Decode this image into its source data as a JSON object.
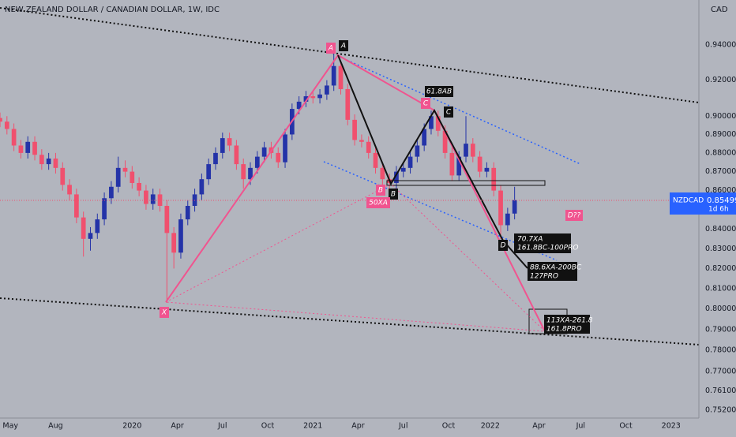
{
  "chart_data": {
    "type": "candlestick",
    "title": "NEW ZEALAND DOLLAR / CANADIAN DOLLAR, 1W, IDC",
    "currency": "CAD",
    "log_scale": true,
    "grid": false,
    "xlim": [
      0,
      201
    ],
    "xticks": [
      {
        "value": 3,
        "label": "May"
      },
      {
        "value": 16,
        "label": "Aug"
      },
      {
        "value": 38,
        "label": "2020"
      },
      {
        "value": 51,
        "label": "Apr"
      },
      {
        "value": 64,
        "label": "Jul"
      },
      {
        "value": 77,
        "label": "Oct"
      },
      {
        "value": 90,
        "label": "2021"
      },
      {
        "value": 103,
        "label": "Apr"
      },
      {
        "value": 116,
        "label": "Jul"
      },
      {
        "value": 129,
        "label": "Oct"
      },
      {
        "value": 141,
        "label": "2022"
      },
      {
        "value": 155,
        "label": "Apr"
      },
      {
        "value": 167,
        "label": "Jul"
      },
      {
        "value": 180,
        "label": "Oct"
      },
      {
        "value": 193,
        "label": "2023"
      }
    ],
    "ylim": [
      0.7484,
      0.9662
    ],
    "yticks": [
      {
        "value": 0.94,
        "label": "0.94000"
      },
      {
        "value": 0.92,
        "label": "0.92000"
      },
      {
        "value": 0.9,
        "label": "0.90000"
      },
      {
        "value": 0.89,
        "label": "0.89000"
      },
      {
        "value": 0.88,
        "label": "0.88000"
      },
      {
        "value": 0.87,
        "label": "0.87000"
      },
      {
        "value": 0.86,
        "label": "0.86000"
      },
      {
        "value": 0.84,
        "label": "0.84000"
      },
      {
        "value": 0.83,
        "label": "0.83000"
      },
      {
        "value": 0.82,
        "label": "0.82000"
      },
      {
        "value": 0.81,
        "label": "0.81000"
      },
      {
        "value": 0.8,
        "label": "0.80000"
      },
      {
        "value": 0.79,
        "label": "0.79000"
      },
      {
        "value": 0.78,
        "label": "0.78000"
      },
      {
        "value": 0.77,
        "label": "0.77000"
      },
      {
        "value": 0.761,
        "label": "0.76100"
      },
      {
        "value": 0.752,
        "label": "0.75200"
      }
    ],
    "x": [
      0,
      2,
      4,
      6,
      8,
      10,
      12,
      14,
      16,
      18,
      20,
      22,
      24,
      26,
      28,
      30,
      32,
      34,
      36,
      38,
      40,
      42,
      44,
      46,
      48,
      50,
      52,
      54,
      56,
      58,
      60,
      62,
      64,
      66,
      68,
      70,
      72,
      74,
      76,
      78,
      80,
      82,
      84,
      86,
      88,
      90,
      92,
      94,
      96,
      98,
      100,
      102,
      104,
      106,
      108,
      110,
      112,
      114,
      116,
      118,
      120,
      122,
      124,
      126,
      128,
      130,
      132,
      134,
      136,
      138,
      140,
      142,
      144,
      146,
      148
    ],
    "series": [
      {
        "name": "NZDCAD",
        "up_color": "#2433a8",
        "down_color": "#f0506e",
        "open": [
          0.899,
          0.897,
          0.893,
          0.884,
          0.88,
          0.886,
          0.879,
          0.874,
          0.877,
          0.872,
          0.863,
          0.858,
          0.846,
          0.835,
          0.838,
          0.845,
          0.856,
          0.862,
          0.872,
          0.87,
          0.864,
          0.86,
          0.853,
          0.858,
          0.852,
          0.838,
          0.828,
          0.845,
          0.852,
          0.858,
          0.866,
          0.874,
          0.88,
          0.888,
          0.884,
          0.874,
          0.866,
          0.872,
          0.878,
          0.883,
          0.88,
          0.875,
          0.89,
          0.904,
          0.908,
          0.911,
          0.91,
          0.912,
          0.917,
          0.928,
          0.915,
          0.898,
          0.887,
          0.886,
          0.88,
          0.872,
          0.866,
          0.864,
          0.87,
          0.872,
          0.878,
          0.884,
          0.893,
          0.9,
          0.892,
          0.88,
          0.868,
          0.878,
          0.885,
          0.878,
          0.87,
          0.872,
          0.86,
          0.842,
          0.848
        ],
        "high": [
          0.902,
          0.9,
          0.896,
          0.887,
          0.889,
          0.889,
          0.882,
          0.88,
          0.88,
          0.875,
          0.866,
          0.861,
          0.849,
          0.841,
          0.848,
          0.859,
          0.865,
          0.878,
          0.876,
          0.873,
          0.867,
          0.863,
          0.861,
          0.861,
          0.855,
          0.841,
          0.848,
          0.855,
          0.861,
          0.869,
          0.877,
          0.883,
          0.891,
          0.891,
          0.887,
          0.877,
          0.875,
          0.881,
          0.886,
          0.886,
          0.883,
          0.893,
          0.907,
          0.911,
          0.914,
          0.914,
          0.915,
          0.92,
          0.935,
          0.931,
          0.918,
          0.901,
          0.89,
          0.889,
          0.883,
          0.875,
          0.869,
          0.873,
          0.875,
          0.881,
          0.887,
          0.896,
          0.903,
          0.903,
          0.895,
          0.883,
          0.881,
          0.9,
          0.888,
          0.881,
          0.875,
          0.875,
          0.863,
          0.851,
          0.862
        ],
        "low": [
          0.894,
          0.89,
          0.881,
          0.877,
          0.877,
          0.876,
          0.871,
          0.871,
          0.869,
          0.86,
          0.855,
          0.843,
          0.826,
          0.829,
          0.835,
          0.842,
          0.853,
          0.859,
          0.867,
          0.861,
          0.857,
          0.85,
          0.85,
          0.849,
          0.803,
          0.82,
          0.825,
          0.842,
          0.849,
          0.855,
          0.863,
          0.871,
          0.877,
          0.881,
          0.871,
          0.861,
          0.863,
          0.869,
          0.875,
          0.877,
          0.872,
          0.872,
          0.887,
          0.901,
          0.905,
          0.907,
          0.907,
          0.909,
          0.914,
          0.912,
          0.895,
          0.884,
          0.883,
          0.877,
          0.869,
          0.863,
          0.861,
          0.861,
          0.867,
          0.869,
          0.875,
          0.881,
          0.89,
          0.889,
          0.877,
          0.865,
          0.865,
          0.875,
          0.875,
          0.867,
          0.867,
          0.857,
          0.835,
          0.839,
          0.845
        ],
        "close": [
          0.897,
          0.893,
          0.884,
          0.88,
          0.886,
          0.879,
          0.874,
          0.877,
          0.872,
          0.863,
          0.858,
          0.846,
          0.835,
          0.838,
          0.845,
          0.856,
          0.862,
          0.872,
          0.87,
          0.864,
          0.86,
          0.853,
          0.858,
          0.852,
          0.838,
          0.828,
          0.845,
          0.852,
          0.858,
          0.866,
          0.874,
          0.88,
          0.888,
          0.884,
          0.874,
          0.866,
          0.872,
          0.878,
          0.883,
          0.88,
          0.875,
          0.89,
          0.904,
          0.908,
          0.911,
          0.91,
          0.912,
          0.917,
          0.928,
          0.915,
          0.898,
          0.887,
          0.886,
          0.88,
          0.872,
          0.866,
          0.864,
          0.87,
          0.872,
          0.878,
          0.884,
          0.893,
          0.9,
          0.892,
          0.88,
          0.868,
          0.878,
          0.885,
          0.878,
          0.87,
          0.872,
          0.86,
          0.842,
          0.848,
          0.85499
        ]
      }
    ],
    "countdown": "1d 6h",
    "annotations": [
      "A",
      "A",
      "61.8AB",
      "C",
      "C",
      "B",
      "B",
      "50XA",
      "X",
      "D",
      "70.7XA",
      "161.8BC-100PRO",
      "88.6XA-200BC",
      "127PRO",
      "113XA-261.8",
      "161.8PRO",
      "D??"
    ]
  }
}
